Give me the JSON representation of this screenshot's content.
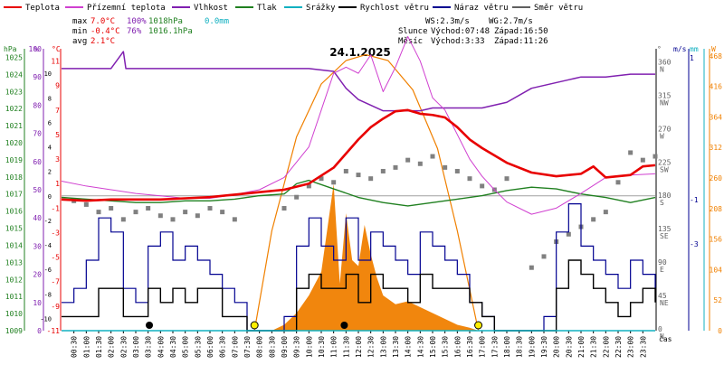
{
  "chart_data": {
    "type": "line",
    "title": "24.1.2025",
    "legend": [
      {
        "name": "Teplota",
        "color": "#e80000"
      },
      {
        "name": "Přízemní teplota",
        "color": "#d040d0"
      },
      {
        "name": "Vlhkost",
        "color": "#8020b0"
      },
      {
        "name": "Tlak",
        "color": "#208020"
      },
      {
        "name": "Srážky",
        "color": "#10b0c0"
      },
      {
        "name": "Rychlost větru",
        "color": "#000000"
      },
      {
        "name": "Náraz větru",
        "color": "#000090"
      },
      {
        "name": "Směr větru",
        "color": "#606060"
      }
    ],
    "stats": {
      "max_label": "max",
      "max_temp": "7.0°C",
      "max_hum": "100%",
      "max_press": "1018hPa",
      "max_rain": "0.0mm",
      "min_label": "min",
      "min_temp": "-0.4°C",
      "min_hum": "76%",
      "min_press": "1016.1hPa",
      "avg_label": "avg",
      "avg_temp": "2.1°C",
      "ws": "WS:2.3m/s",
      "wg": "WG:2.7m/s",
      "sun_label": "Slunce",
      "sun_rise": "Východ:07:48",
      "sun_set": "Západ:16:50",
      "moon_label": "Měsíc",
      "moon_rise": "Východ:3:33",
      "moon_set": "Západ:11:26"
    },
    "axes": {
      "hpa_unit": "hPa",
      "pct_unit": "%",
      "c_unit": "°C",
      "deg_unit": "°",
      "ms_unit": "m/s",
      "mm_unit": "mm",
      "w_unit": "W",
      "x_unit": "čas",
      "hpa_ticks": [
        "1025",
        "1024",
        "1023",
        "1022",
        "1021",
        "1020",
        "1019",
        "1018",
        "1017",
        "1016",
        "1015",
        "1014",
        "1013",
        "1012",
        "1011",
        "1010",
        "1009"
      ],
      "pct_ticks": [
        "100",
        "90",
        "80",
        "70",
        "60",
        "50",
        "40",
        "30",
        "20",
        "10",
        "0"
      ],
      "c_ticks": [
        "11",
        "9",
        "7",
        "5",
        "3",
        "1",
        "-1",
        "-3",
        "-5",
        "-7",
        "-9",
        "-11"
      ],
      "c_ticks_mid": [
        "10",
        "8",
        "6",
        "4",
        "2",
        "0",
        "-2",
        "-4",
        "-6",
        "-8",
        "-10"
      ],
      "dir_ticks": [
        "360",
        "315",
        "270",
        "225",
        "180",
        "135",
        "90",
        "45",
        "0"
      ],
      "dir_names": [
        "N",
        "NW",
        "W",
        "SW",
        "S",
        "SE",
        "E",
        "NE",
        "N"
      ],
      "ms_ticks": [
        "1",
        "-1",
        "-3"
      ],
      "w_ticks": [
        "468",
        "416",
        "364",
        "312",
        "260",
        "208",
        "156",
        "104",
        "52",
        "0"
      ],
      "x_ticks": [
        "00:30",
        "01:00",
        "01:30",
        "02:00",
        "02:30",
        "03:00",
        "03:30",
        "04:00",
        "04:30",
        "05:00",
        "05:30",
        "06:00",
        "06:30",
        "07:00",
        "07:30",
        "08:00",
        "08:30",
        "09:00",
        "09:30",
        "10:00",
        "10:30",
        "11:00",
        "11:30",
        "12:00",
        "12:30",
        "13:00",
        "13:30",
        "14:00",
        "14:30",
        "15:00",
        "15:30",
        "16:00",
        "16:30",
        "17:00",
        "17:30",
        "18:00",
        "18:30",
        "19:00",
        "19:30",
        "20:00",
        "20:30",
        "21:00",
        "21:30",
        "22:00",
        "22:30",
        "23:00",
        "23:30"
      ]
    },
    "ylim_temp": [
      -11,
      12
    ],
    "ylim_hum": [
      0,
      100
    ],
    "ylim_press": [
      1009,
      1025.5
    ],
    "ylim_wind": [
      0,
      20
    ],
    "ylim_solar": [
      0,
      480
    ],
    "ylim_dir": [
      0,
      380
    ],
    "series": {
      "temp": {
        "x": [
          0,
          1,
          2,
          3,
          4,
          5,
          6,
          7,
          8,
          9,
          10,
          11,
          12,
          12.5,
          13,
          13.5,
          14,
          14.5,
          15,
          15.5,
          16,
          16.5,
          17,
          17.5,
          18,
          19,
          20,
          21,
          21.5,
          22,
          22.5,
          23,
          23.5,
          24
        ],
        "y": [
          -0.3,
          -0.4,
          -0.3,
          -0.3,
          -0.3,
          -0.2,
          -0.1,
          0.1,
          0.3,
          0.5,
          1.0,
          2.3,
          4.6,
          5.6,
          6.3,
          6.9,
          7.0,
          6.7,
          6.6,
          6.4,
          5.6,
          4.6,
          3.9,
          3.3,
          2.7,
          1.9,
          1.6,
          1.8,
          2.4,
          1.5,
          1.6,
          1.7,
          2.4,
          2.5
        ]
      },
      "ground_temp": {
        "x": [
          0,
          1,
          2,
          3,
          4,
          5,
          6,
          7,
          8,
          9,
          10,
          10.5,
          11,
          11.5,
          12,
          12.5,
          13,
          13.5,
          14,
          14.5,
          15,
          15.5,
          16,
          16.5,
          17,
          17.5,
          18,
          19,
          20,
          21,
          22,
          23,
          24
        ],
        "y": [
          1.2,
          0.8,
          0.5,
          0.2,
          0,
          -0.2,
          -0.2,
          0.1,
          0.5,
          1.5,
          4.0,
          7.0,
          10.0,
          10.5,
          10.0,
          11.5,
          8.5,
          10.5,
          13.0,
          11.0,
          8.0,
          7.0,
          5.0,
          3.0,
          1.6,
          0.5,
          -0.5,
          -1.5,
          -1.0,
          0.2,
          1.5,
          1.7,
          1.8
        ]
      },
      "humidity": {
        "x": [
          0,
          1,
          2,
          2.5,
          2.6,
          3,
          4,
          5,
          6,
          7,
          8,
          9,
          10,
          11,
          11.5,
          12,
          12.5,
          13,
          13.5,
          14,
          14.5,
          15,
          15.5,
          16,
          16.5,
          17,
          17.5,
          18,
          19,
          20,
          20.5,
          21,
          22,
          23,
          24
        ],
        "y": [
          93,
          93,
          93,
          99,
          93,
          93,
          93,
          93,
          93,
          93,
          93,
          93,
          93,
          92,
          86,
          82,
          80,
          78,
          78,
          78,
          78,
          79,
          79,
          79,
          79,
          79,
          80,
          81,
          86,
          88,
          89,
          90,
          90,
          91,
          91
        ]
      },
      "pressure": {
        "x": [
          0,
          1,
          2,
          3,
          4,
          5,
          6,
          7,
          8,
          9,
          9.5,
          10,
          11,
          12,
          13,
          14,
          15,
          16,
          17,
          18,
          19,
          20,
          21,
          22,
          23,
          24
        ],
        "y": [
          1016.8,
          1016.7,
          1016.6,
          1016.5,
          1016.5,
          1016.6,
          1016.6,
          1016.7,
          1016.9,
          1017.0,
          1017.6,
          1017.8,
          1017.3,
          1016.8,
          1016.5,
          1016.3,
          1016.5,
          1016.7,
          1016.9,
          1017.2,
          1017.4,
          1017.3,
          1017.0,
          1016.8,
          1016.5,
          1016.8
        ]
      },
      "wind_speed": {
        "x": [
          0,
          1,
          1.5,
          2,
          2.5,
          3,
          3.5,
          4,
          4.5,
          5,
          5.5,
          6,
          6.5,
          7,
          7.5,
          8,
          8.5,
          9,
          9.5,
          10,
          10.5,
          11,
          11.5,
          12,
          12.5,
          13,
          13.5,
          14,
          14.5,
          15,
          15.5,
          16,
          16.5,
          17,
          17.5,
          18,
          18.5,
          19,
          19.5,
          20,
          20.5,
          21,
          21.5,
          22,
          22.5,
          23,
          23.5,
          24
        ],
        "y": [
          1,
          1,
          3,
          3,
          1,
          1,
          3,
          2,
          3,
          2,
          3,
          3,
          1,
          1,
          0,
          0,
          0,
          0,
          3,
          4,
          3,
          3,
          4,
          2,
          4,
          3,
          3,
          2,
          4,
          3,
          3,
          3,
          2,
          1,
          0,
          0,
          0,
          0,
          0,
          3,
          5,
          4,
          3,
          2,
          1,
          2,
          3,
          2
        ]
      },
      "wind_gust": {
        "x": [
          0,
          0.5,
          1,
          1.5,
          2,
          2.5,
          3,
          3.5,
          4,
          4.5,
          5,
          5.5,
          6,
          6.5,
          7,
          7.5,
          8,
          8.5,
          9,
          9.5,
          10,
          10.5,
          11,
          11.5,
          12,
          12.5,
          13,
          13.5,
          14,
          14.5,
          15,
          15.5,
          16,
          16.5,
          17,
          17.5,
          18,
          18.5,
          19,
          19.5,
          20,
          20.5,
          21,
          21.5,
          22,
          22.5,
          23,
          23.5,
          24
        ],
        "y": [
          2,
          3,
          5,
          8,
          7,
          3,
          2,
          6,
          7,
          5,
          6,
          5,
          4,
          3,
          2,
          0,
          0,
          0,
          1,
          6,
          8,
          6,
          5,
          8,
          5,
          7,
          6,
          5,
          4,
          7,
          6,
          5,
          4,
          2,
          1,
          0,
          0,
          0,
          0,
          1,
          7,
          9,
          6,
          5,
          4,
          3,
          5,
          4,
          3
        ]
      },
      "wind_dir_x": [
        0.5,
        1,
        1.5,
        2,
        2.5,
        3,
        3.5,
        4,
        4.5,
        5,
        5.5,
        6,
        6.5,
        7,
        9,
        9.5,
        10,
        10.5,
        11,
        11.5,
        12,
        12.5,
        13,
        13.5,
        14,
        14.5,
        15,
        15.5,
        16,
        16.5,
        17,
        17.5,
        18,
        19,
        19.5,
        20,
        20.5,
        21,
        21.5,
        22,
        22.5,
        23,
        23.5,
        24
      ],
      "wind_dir_y": [
        175,
        170,
        160,
        165,
        150,
        160,
        165,
        155,
        150,
        160,
        155,
        165,
        160,
        150,
        165,
        180,
        195,
        205,
        200,
        215,
        210,
        205,
        215,
        220,
        230,
        225,
        235,
        220,
        215,
        205,
        195,
        190,
        205,
        85,
        100,
        120,
        130,
        140,
        150,
        160,
        200,
        240,
        230,
        235
      ],
      "solar": {
        "x": [
          7.8,
          8.5,
          9,
          9.5,
          10,
          10.5,
          11,
          11.25,
          11.5,
          11.75,
          12,
          12.25,
          12.5,
          12.75,
          13,
          13.5,
          14,
          14.5,
          15,
          15.5,
          16,
          16.5,
          16.85
        ],
        "y": [
          0,
          0,
          10,
          30,
          60,
          100,
          250,
          80,
          200,
          120,
          110,
          180,
          130,
          90,
          60,
          45,
          50,
          40,
          30,
          20,
          10,
          5,
          0
        ]
      },
      "sun_x": [
        7.8,
        8.5,
        9.5,
        10.5,
        11.5,
        12.3,
        13.2,
        14.2,
        15.2,
        16,
        16.85
      ],
      "sun_y": [
        0,
        170,
        330,
        420,
        460,
        470,
        460,
        410,
        310,
        170,
        0
      ],
      "rain": {
        "x": [
          0,
          24
        ],
        "y": [
          0,
          0
        ]
      }
    }
  }
}
